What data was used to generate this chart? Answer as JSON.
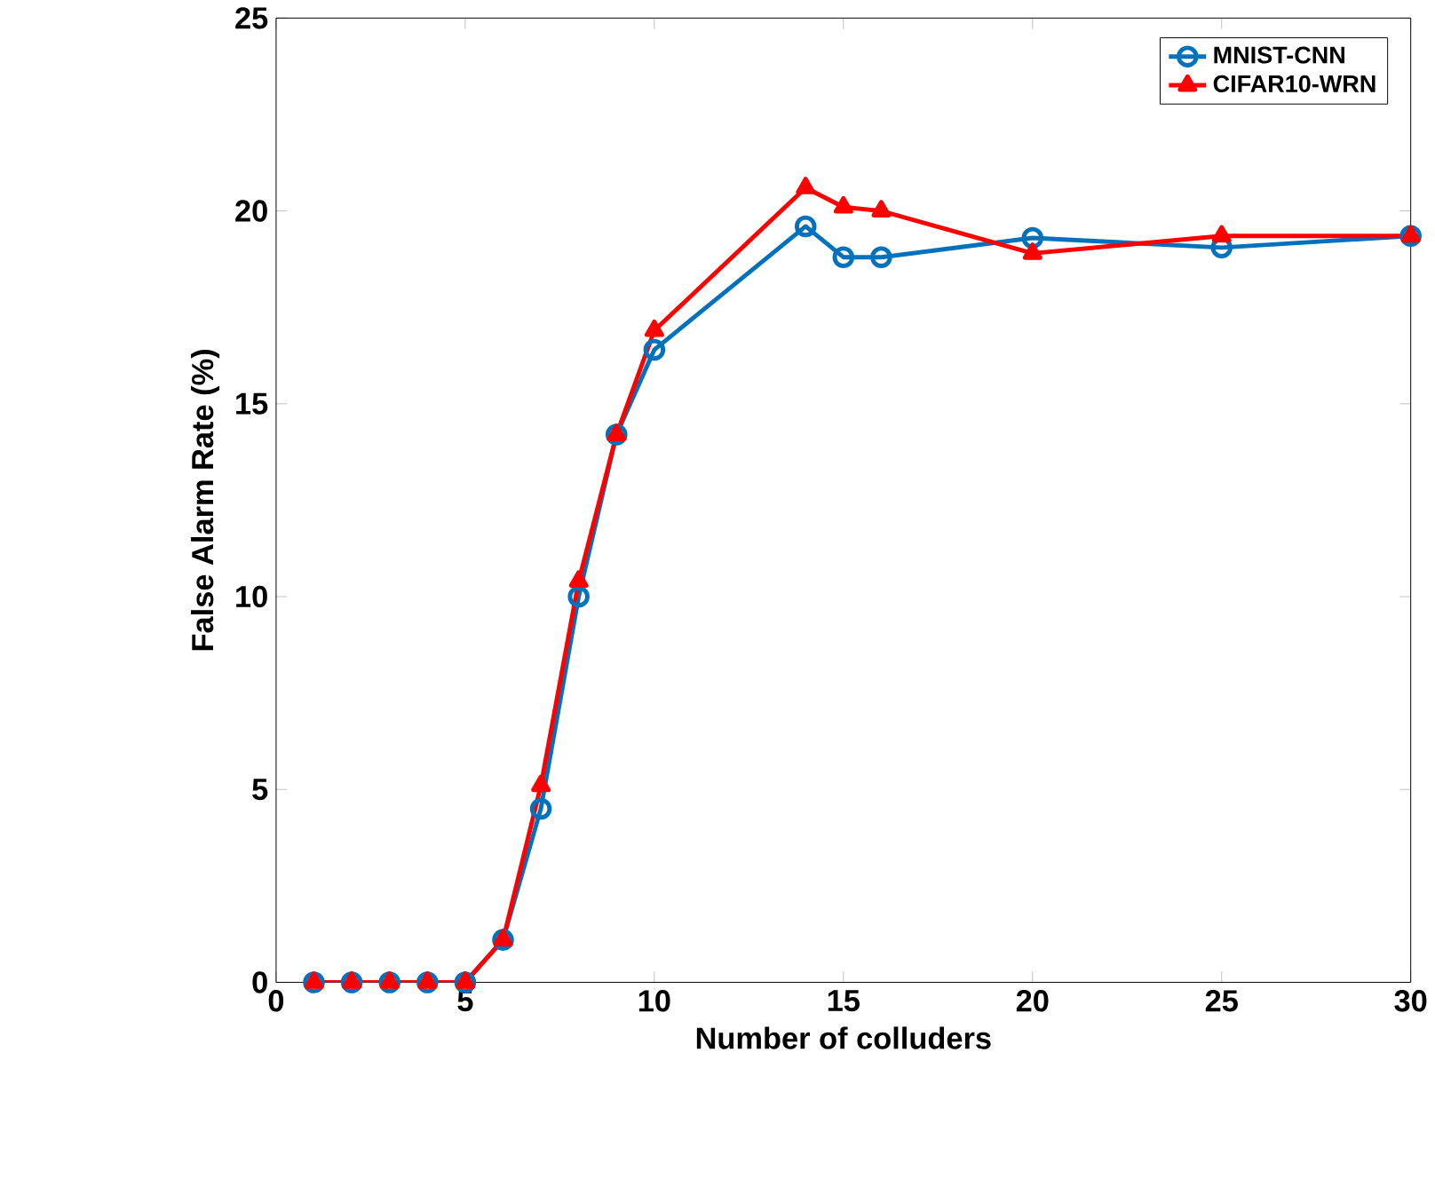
{
  "chart_data": {
    "type": "line",
    "xlabel": "Number of colluders",
    "ylabel": "False Alarm Rate (%)",
    "x": [
      1,
      2,
      3,
      4,
      5,
      6,
      7,
      8,
      9,
      10,
      14,
      15,
      16,
      20,
      25,
      30
    ],
    "series": [
      {
        "name": "MNIST-CNN",
        "color": "#0072bd",
        "marker": "circle",
        "values": [
          0,
          0,
          0,
          0,
          0,
          1.1,
          4.5,
          10,
          14.2,
          16.4,
          19.6,
          18.8,
          18.8,
          19.3,
          19.05,
          19.35
        ]
      },
      {
        "name": "CIFAR10-WRN",
        "color": "#ff0000",
        "marker": "triangle",
        "values": [
          0,
          0,
          0,
          0,
          0,
          1.1,
          5.1,
          10.4,
          14.2,
          16.9,
          20.6,
          20.1,
          20.0,
          18.9,
          19.35,
          19.35
        ]
      }
    ],
    "xlim": [
      0,
      30
    ],
    "ylim": [
      0,
      25
    ],
    "xticks": [
      0,
      5,
      10,
      15,
      20,
      25,
      30
    ],
    "yticks": [
      0,
      5,
      10,
      15,
      20,
      25
    ],
    "grid": false,
    "legend": "top right",
    "line_style": "solid"
  }
}
